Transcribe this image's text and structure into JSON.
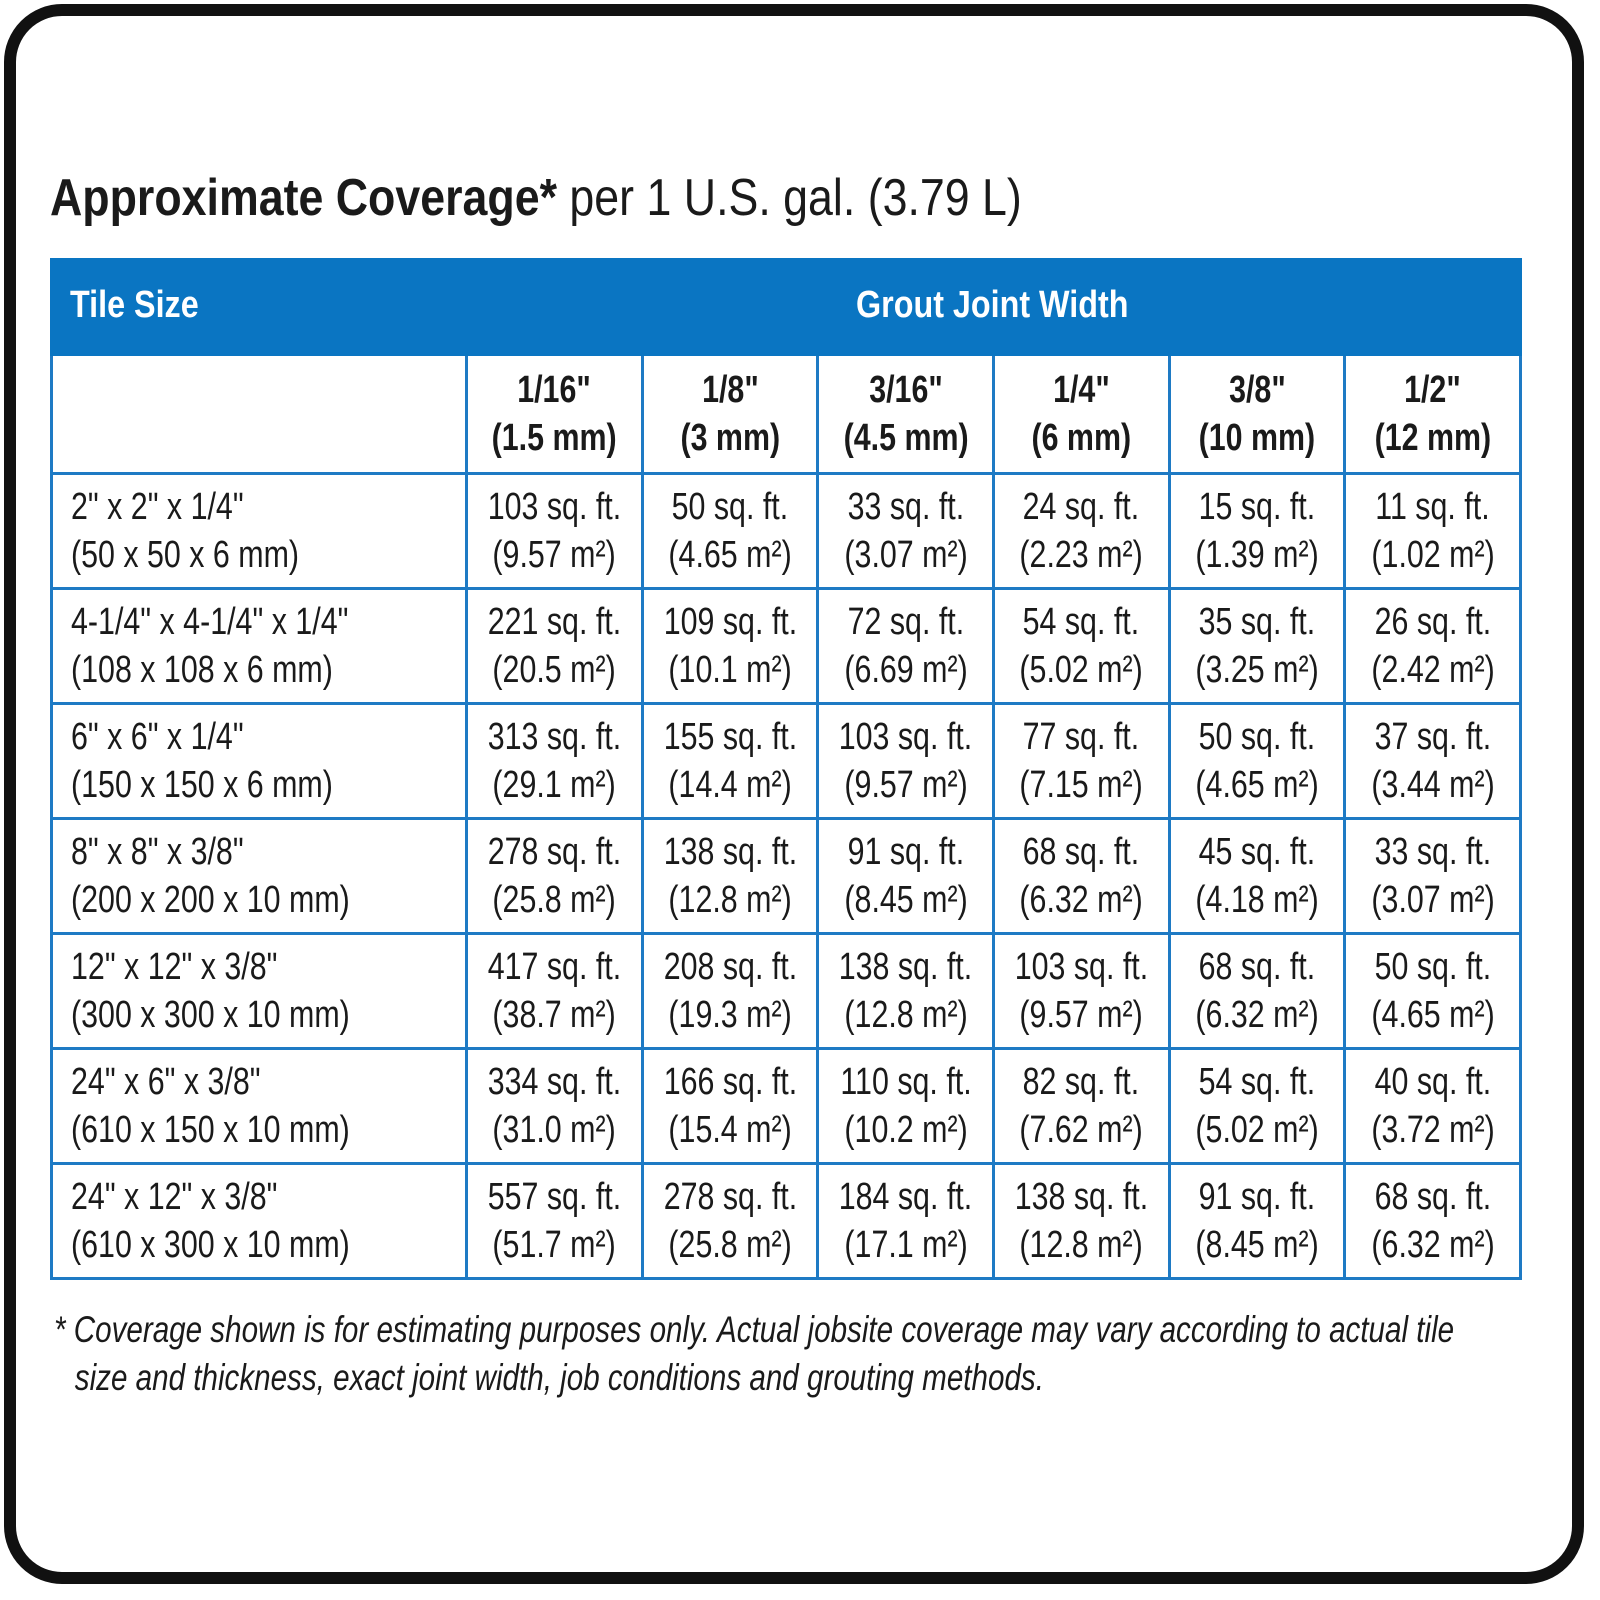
{
  "title": {
    "bold": "Approximate Coverage*",
    "rest": "per 1 U.S. gal. (3.79 L)"
  },
  "colors": {
    "header_band": "#0a75c2",
    "grid": "#1e7ac4",
    "frame": "#111111"
  },
  "table": {
    "tile_size_label": "Tile Size",
    "group_label": "Grout Joint Width",
    "columns": [
      {
        "in": "1/16\"",
        "mm": "(1.5 mm)"
      },
      {
        "in": "1/8\"",
        "mm": "(3 mm)"
      },
      {
        "in": "3/16\"",
        "mm": "(4.5 mm)"
      },
      {
        "in": "1/4\"",
        "mm": "(6 mm)"
      },
      {
        "in": "3/8\"",
        "mm": "(10 mm)"
      },
      {
        "in": "1/2\"",
        "mm": "(12 mm)"
      }
    ],
    "rows": [
      {
        "size_in": "2\" x 2\" x 1/4\"",
        "size_mm": "(50 x 50 x 6 mm)",
        "cells": [
          {
            "ft": "103 sq. ft.",
            "m": "(9.57 m²)"
          },
          {
            "ft": "50 sq. ft.",
            "m": "(4.65 m²)"
          },
          {
            "ft": "33 sq. ft.",
            "m": "(3.07 m²)"
          },
          {
            "ft": "24 sq. ft.",
            "m": "(2.23 m²)"
          },
          {
            "ft": "15 sq. ft.",
            "m": "(1.39 m²)"
          },
          {
            "ft": "11 sq. ft.",
            "m": "(1.02 m²)"
          }
        ]
      },
      {
        "size_in": "4-1/4\" x 4-1/4\" x 1/4\"",
        "size_mm": "(108 x 108 x 6 mm)",
        "cells": [
          {
            "ft": "221 sq. ft.",
            "m": "(20.5 m²)"
          },
          {
            "ft": "109 sq. ft.",
            "m": "(10.1 m²)"
          },
          {
            "ft": "72 sq. ft.",
            "m": "(6.69 m²)"
          },
          {
            "ft": "54 sq. ft.",
            "m": "(5.02 m²)"
          },
          {
            "ft": "35 sq. ft.",
            "m": "(3.25 m²)"
          },
          {
            "ft": "26 sq. ft.",
            "m": "(2.42 m²)"
          }
        ]
      },
      {
        "size_in": "6\" x 6\" x 1/4\"",
        "size_mm": "(150 x 150 x 6 mm)",
        "cells": [
          {
            "ft": "313 sq. ft.",
            "m": "(29.1 m²)"
          },
          {
            "ft": "155 sq. ft.",
            "m": "(14.4 m²)"
          },
          {
            "ft": "103 sq. ft.",
            "m": "(9.57 m²)"
          },
          {
            "ft": "77 sq. ft.",
            "m": "(7.15 m²)"
          },
          {
            "ft": "50 sq. ft.",
            "m": "(4.65 m²)"
          },
          {
            "ft": "37 sq. ft.",
            "m": "(3.44 m²)"
          }
        ]
      },
      {
        "size_in": "8\" x 8\" x 3/8\"",
        "size_mm": "(200 x 200 x 10 mm)",
        "cells": [
          {
            "ft": "278 sq. ft.",
            "m": "(25.8 m²)"
          },
          {
            "ft": "138 sq. ft.",
            "m": "(12.8 m²)"
          },
          {
            "ft": "91 sq. ft.",
            "m": "(8.45 m²)"
          },
          {
            "ft": "68 sq. ft.",
            "m": "(6.32 m²)"
          },
          {
            "ft": "45 sq. ft.",
            "m": "(4.18 m²)"
          },
          {
            "ft": "33 sq. ft.",
            "m": "(3.07 m²)"
          }
        ]
      },
      {
        "size_in": "12\" x 12\" x 3/8\"",
        "size_mm": "(300 x 300 x 10 mm)",
        "cells": [
          {
            "ft": "417 sq. ft.",
            "m": "(38.7 m²)"
          },
          {
            "ft": "208 sq. ft.",
            "m": "(19.3 m²)"
          },
          {
            "ft": "138 sq. ft.",
            "m": "(12.8 m²)"
          },
          {
            "ft": "103 sq. ft.",
            "m": "(9.57 m²)"
          },
          {
            "ft": "68 sq. ft.",
            "m": "(6.32 m²)"
          },
          {
            "ft": "50 sq. ft.",
            "m": "(4.65 m²)"
          }
        ]
      },
      {
        "size_in": "24\" x 6\" x 3/8\"",
        "size_mm": "(610 x 150 x 10 mm)",
        "cells": [
          {
            "ft": "334 sq. ft.",
            "m": "(31.0 m²)"
          },
          {
            "ft": "166 sq. ft.",
            "m": "(15.4 m²)"
          },
          {
            "ft": "110 sq. ft.",
            "m": "(10.2 m²)"
          },
          {
            "ft": "82 sq. ft.",
            "m": "(7.62 m²)"
          },
          {
            "ft": "54 sq. ft.",
            "m": "(5.02 m²)"
          },
          {
            "ft": "40 sq. ft.",
            "m": "(3.72 m²)"
          }
        ]
      },
      {
        "size_in": "24\" x 12\" x 3/8\"",
        "size_mm": "(610 x 300 x 10 mm)",
        "cells": [
          {
            "ft": "557 sq. ft.",
            "m": "(51.7 m²)"
          },
          {
            "ft": "278 sq. ft.",
            "m": "(25.8 m²)"
          },
          {
            "ft": "184 sq. ft.",
            "m": "(17.1 m²)"
          },
          {
            "ft": "138 sq. ft.",
            "m": "(12.8 m²)"
          },
          {
            "ft": "91 sq. ft.",
            "m": "(8.45 m²)"
          },
          {
            "ft": "68 sq. ft.",
            "m": "(6.32 m²)"
          }
        ]
      }
    ]
  },
  "footnote": {
    "line1": "* Coverage shown is for estimating purposes only. Actual jobsite coverage may vary according to actual tile",
    "line2": "size and thickness, exact joint width, job conditions and grouting methods."
  }
}
